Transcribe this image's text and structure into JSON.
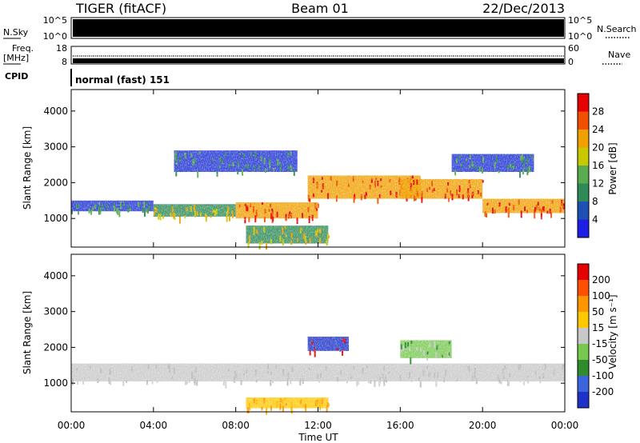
{
  "header": {
    "radar_title": "TIGER (fitACF)",
    "beam": "Beam 01",
    "date": "22/Dec/2013"
  },
  "nsky_panel": {
    "left_label": "N.Sky",
    "left_ticks": [
      "10^5",
      "10^0"
    ],
    "right_ticks": [
      "10^5",
      "10^0"
    ],
    "right_label": "N.Search"
  },
  "freq_panel": {
    "left_label_1": "Freq.",
    "left_label_2": "[MHz]",
    "left_ticks": [
      "18",
      "8"
    ],
    "right_ticks": [
      "60",
      "0"
    ],
    "right_label": "Nave"
  },
  "cpid_panel": {
    "label": "CPID",
    "mode_text": "normal (fast) 151"
  },
  "chart_data": [
    {
      "type": "heatmap",
      "name": "power",
      "ylabel": "Slant Range [km]",
      "ylim": [
        200,
        4600
      ],
      "yticks": [
        "1000",
        "2000",
        "3000",
        "4000"
      ],
      "colorbar_label": "Power [dB]",
      "colorbar_ticks": [
        "4",
        "8",
        "12",
        "16",
        "20",
        "24",
        "28"
      ],
      "colorbar_colors": [
        "#1e1ee6",
        "#1e50b4",
        "#2e8b57",
        "#5aaa50",
        "#c8c800",
        "#f0a000",
        "#f05000",
        "#e60000"
      ],
      "bands": [
        {
          "x": [
            0,
            4
          ],
          "y": [
            1200,
            1500
          ],
          "level": "low"
        },
        {
          "x": [
            4,
            8
          ],
          "y": [
            1050,
            1400
          ],
          "level": "mid"
        },
        {
          "x": [
            8,
            12
          ],
          "y": [
            1000,
            1450
          ],
          "level": "high"
        },
        {
          "x": [
            11.5,
            17
          ],
          "y": [
            1550,
            2200
          ],
          "level": "high"
        },
        {
          "x": [
            16,
            20
          ],
          "y": [
            1550,
            2100
          ],
          "level": "high"
        },
        {
          "x": [
            20,
            24
          ],
          "y": [
            1150,
            1550
          ],
          "level": "high"
        },
        {
          "x": [
            8.5,
            12.5
          ],
          "y": [
            300,
            800
          ],
          "level": "mid"
        },
        {
          "x": [
            5,
            11
          ],
          "y": [
            2300,
            2900
          ],
          "level": "low"
        },
        {
          "x": [
            18.5,
            22.5
          ],
          "y": [
            2300,
            2800
          ],
          "level": "low"
        }
      ]
    },
    {
      "type": "heatmap",
      "name": "velocity",
      "ylabel": "Slant Range [km]",
      "xlabel": "Time UT",
      "ylim": [
        200,
        4600
      ],
      "yticks": [
        "1000",
        "2000",
        "3000",
        "4000"
      ],
      "xticks": [
        "00:00",
        "04:00",
        "08:00",
        "12:00",
        "16:00",
        "20:00",
        "00:00"
      ],
      "colorbar_label": "Velocity [m s⁻¹]",
      "colorbar_ticks": [
        "200",
        "100",
        "50",
        "15",
        "-15",
        "-50",
        "-100",
        "-200"
      ],
      "colorbar_colors": [
        "#1e32c8",
        "#3c64dc",
        "#2e8b2e",
        "#78c850",
        "#c8c8c8",
        "#ffc800",
        "#ff9600",
        "#ff5000",
        "#e60000"
      ],
      "bands": [
        {
          "x": [
            0,
            24
          ],
          "y": [
            1050,
            1550
          ],
          "level": "zero"
        },
        {
          "x": [
            11.5,
            13.5
          ],
          "y": [
            1900,
            2300
          ],
          "level": "toward"
        },
        {
          "x": [
            8.5,
            12.5
          ],
          "y": [
            300,
            600
          ],
          "level": "away"
        },
        {
          "x": [
            16,
            18.5
          ],
          "y": [
            1700,
            2200
          ],
          "level": "slow"
        }
      ]
    }
  ]
}
